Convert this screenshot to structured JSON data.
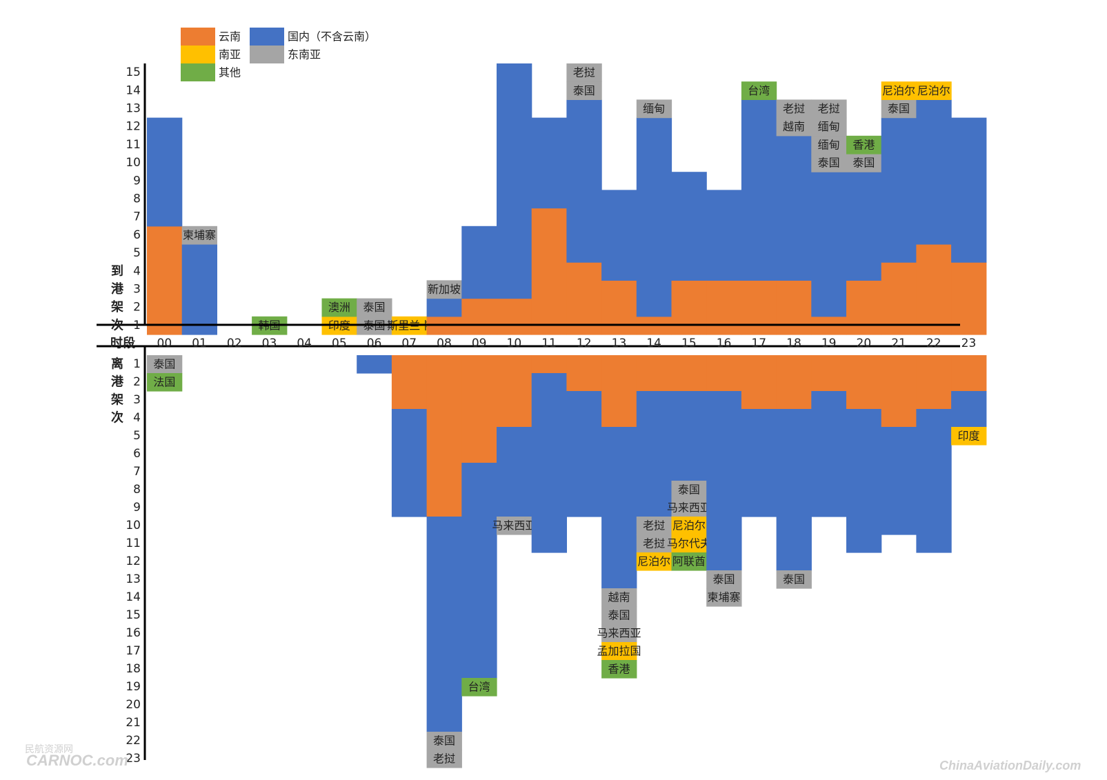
{
  "colors": {
    "yunnan": "#ED7D31",
    "domestic": "#4472C4",
    "south_asia": "#FFC000",
    "southeast_asia": "#A5A5A5",
    "other": "#70AD47"
  },
  "legend": [
    {
      "key": "yunnan",
      "label": "云南"
    },
    {
      "key": "domestic",
      "label": "国内（不含云南）"
    },
    {
      "key": "south_asia",
      "label": "南亚"
    },
    {
      "key": "southeast_asia",
      "label": "东南亚"
    },
    {
      "key": "other",
      "label": "其他"
    }
  ],
  "watermarks": {
    "left_line1": "民航资源网",
    "left_line2": "CARNOC.com",
    "right": "ChinaAviationDaily.com"
  },
  "chart_data": {
    "type": "bar",
    "x_axis_title": "时段",
    "arrivals_axis_title": "到港架次",
    "departures_axis_title": "离港架次",
    "categories": [
      "00",
      "01",
      "02",
      "03",
      "04",
      "05",
      "06",
      "07",
      "08",
      "09",
      "10",
      "11",
      "12",
      "13",
      "14",
      "15",
      "16",
      "17",
      "18",
      "19",
      "20",
      "21",
      "22",
      "23"
    ],
    "arrivals_ticks": [
      1,
      2,
      3,
      4,
      5,
      6,
      7,
      8,
      9,
      10,
      11,
      12,
      13,
      14,
      15
    ],
    "departures_ticks": [
      1,
      2,
      3,
      4,
      5,
      6,
      7,
      8,
      9,
      10,
      11,
      12,
      13,
      14,
      15,
      16,
      17,
      18,
      19,
      20,
      21,
      22,
      23
    ],
    "arrivals": [
      {
        "hour": "00",
        "stack": [
          {
            "c": "yunnan",
            "n": 6
          },
          {
            "c": "domestic",
            "n": 6
          }
        ]
      },
      {
        "hour": "01",
        "stack": [
          {
            "c": "domestic",
            "n": 5
          },
          {
            "c": "southeast_asia",
            "n": 1,
            "label": "柬埔寨"
          }
        ]
      },
      {
        "hour": "02",
        "stack": []
      },
      {
        "hour": "03",
        "stack": [
          {
            "c": "other",
            "n": 1,
            "label": "韩国"
          }
        ]
      },
      {
        "hour": "04",
        "stack": []
      },
      {
        "hour": "05",
        "stack": [
          {
            "c": "south_asia",
            "n": 1,
            "label": "印度"
          },
          {
            "c": "other",
            "n": 1,
            "label": "澳洲"
          }
        ]
      },
      {
        "hour": "06",
        "stack": [
          {
            "c": "southeast_asia",
            "n": 1,
            "label": "泰国"
          },
          {
            "c": "southeast_asia",
            "n": 1,
            "label": "泰国"
          }
        ]
      },
      {
        "hour": "07",
        "stack": [
          {
            "c": "south_asia",
            "n": 1,
            "label": "斯里兰卡"
          }
        ]
      },
      {
        "hour": "08",
        "stack": [
          {
            "c": "yunnan",
            "n": 1
          },
          {
            "c": "domestic",
            "n": 1
          },
          {
            "c": "southeast_asia",
            "n": 1,
            "label": "新加坡"
          }
        ]
      },
      {
        "hour": "09",
        "stack": [
          {
            "c": "yunnan",
            "n": 2
          },
          {
            "c": "domestic",
            "n": 4
          }
        ]
      },
      {
        "hour": "10",
        "stack": [
          {
            "c": "yunnan",
            "n": 2
          },
          {
            "c": "domestic",
            "n": 13
          }
        ]
      },
      {
        "hour": "11",
        "stack": [
          {
            "c": "yunnan",
            "n": 7
          },
          {
            "c": "domestic",
            "n": 5
          }
        ]
      },
      {
        "hour": "12",
        "stack": [
          {
            "c": "yunnan",
            "n": 4
          },
          {
            "c": "domestic",
            "n": 9
          },
          {
            "c": "southeast_asia",
            "n": 1,
            "label": "泰国"
          },
          {
            "c": "southeast_asia",
            "n": 1,
            "label": "老挝"
          }
        ]
      },
      {
        "hour": "13",
        "stack": [
          {
            "c": "yunnan",
            "n": 3
          },
          {
            "c": "domestic",
            "n": 5
          }
        ]
      },
      {
        "hour": "14",
        "stack": [
          {
            "c": "yunnan",
            "n": 1
          },
          {
            "c": "domestic",
            "n": 11
          },
          {
            "c": "southeast_asia",
            "n": 1,
            "label": "缅甸"
          }
        ]
      },
      {
        "hour": "15",
        "stack": [
          {
            "c": "yunnan",
            "n": 3
          },
          {
            "c": "domestic",
            "n": 6
          }
        ]
      },
      {
        "hour": "16",
        "stack": [
          {
            "c": "yunnan",
            "n": 3
          },
          {
            "c": "domestic",
            "n": 5
          }
        ]
      },
      {
        "hour": "17",
        "stack": [
          {
            "c": "yunnan",
            "n": 3
          },
          {
            "c": "domestic",
            "n": 10
          },
          {
            "c": "other",
            "n": 1,
            "label": "台湾"
          }
        ]
      },
      {
        "hour": "18",
        "stack": [
          {
            "c": "yunnan",
            "n": 3
          },
          {
            "c": "domestic",
            "n": 8
          },
          {
            "c": "southeast_asia",
            "n": 1,
            "label": "越南"
          },
          {
            "c": "southeast_asia",
            "n": 1,
            "label": "老挝"
          }
        ]
      },
      {
        "hour": "19",
        "stack": [
          {
            "c": "yunnan",
            "n": 1
          },
          {
            "c": "domestic",
            "n": 8
          },
          {
            "c": "southeast_asia",
            "n": 1,
            "label": "泰国"
          },
          {
            "c": "southeast_asia",
            "n": 1,
            "label": "缅甸"
          },
          {
            "c": "southeast_asia",
            "n": 1,
            "label": "缅甸"
          },
          {
            "c": "southeast_asia",
            "n": 1,
            "label": "老挝"
          }
        ]
      },
      {
        "hour": "20",
        "stack": [
          {
            "c": "yunnan",
            "n": 3
          },
          {
            "c": "domestic",
            "n": 6
          },
          {
            "c": "southeast_asia",
            "n": 1,
            "label": "泰国"
          },
          {
            "c": "other",
            "n": 1,
            "label": "香港"
          }
        ]
      },
      {
        "hour": "21",
        "stack": [
          {
            "c": "yunnan",
            "n": 4
          },
          {
            "c": "domestic",
            "n": 8
          },
          {
            "c": "southeast_asia",
            "n": 1,
            "label": "泰国"
          },
          {
            "c": "south_asia",
            "n": 1,
            "label": "尼泊尔"
          }
        ]
      },
      {
        "hour": "22",
        "stack": [
          {
            "c": "yunnan",
            "n": 5
          },
          {
            "c": "domestic",
            "n": 8
          },
          {
            "c": "south_asia",
            "n": 1,
            "label": "尼泊尔"
          }
        ]
      },
      {
        "hour": "23",
        "stack": [
          {
            "c": "yunnan",
            "n": 4
          },
          {
            "c": "domestic",
            "n": 8
          }
        ]
      }
    ],
    "departures": [
      {
        "hour": "00",
        "stack": [
          {
            "c": "southeast_asia",
            "n": 1,
            "label": "泰国"
          },
          {
            "c": "other",
            "n": 1,
            "label": "法国"
          }
        ]
      },
      {
        "hour": "01",
        "stack": []
      },
      {
        "hour": "02",
        "stack": []
      },
      {
        "hour": "03",
        "stack": []
      },
      {
        "hour": "04",
        "stack": []
      },
      {
        "hour": "05",
        "stack": []
      },
      {
        "hour": "06",
        "stack": [
          {
            "c": "domestic",
            "n": 1
          }
        ]
      },
      {
        "hour": "07",
        "stack": [
          {
            "c": "yunnan",
            "n": 3
          },
          {
            "c": "domestic",
            "n": 6
          }
        ]
      },
      {
        "hour": "08",
        "stack": [
          {
            "c": "yunnan",
            "n": 9
          },
          {
            "c": "domestic",
            "n": 12
          },
          {
            "c": "southeast_asia",
            "n": 1,
            "label": "泰国"
          },
          {
            "c": "southeast_asia",
            "n": 1,
            "label": "老挝"
          }
        ]
      },
      {
        "hour": "09",
        "stack": [
          {
            "c": "yunnan",
            "n": 6
          },
          {
            "c": "domestic",
            "n": 12
          },
          {
            "c": "other",
            "n": 1,
            "label": "台湾"
          }
        ]
      },
      {
        "hour": "10",
        "stack": [
          {
            "c": "yunnan",
            "n": 4
          },
          {
            "c": "domestic",
            "n": 5
          },
          {
            "c": "southeast_asia",
            "n": 1,
            "label": "马来西亚"
          }
        ]
      },
      {
        "hour": "11",
        "stack": [
          {
            "c": "yunnan",
            "n": 1
          },
          {
            "c": "domestic",
            "n": 10
          }
        ]
      },
      {
        "hour": "12",
        "stack": [
          {
            "c": "yunnan",
            "n": 2
          },
          {
            "c": "domestic",
            "n": 7
          }
        ]
      },
      {
        "hour": "13",
        "stack": [
          {
            "c": "yunnan",
            "n": 4
          },
          {
            "c": "domestic",
            "n": 9
          },
          {
            "c": "southeast_asia",
            "n": 1,
            "label": "越南"
          },
          {
            "c": "southeast_asia",
            "n": 1,
            "label": "泰国"
          },
          {
            "c": "southeast_asia",
            "n": 1,
            "label": "马来西亚"
          },
          {
            "c": "south_asia",
            "n": 1,
            "label": "孟加拉国"
          },
          {
            "c": "other",
            "n": 1,
            "label": "香港"
          }
        ]
      },
      {
        "hour": "14",
        "stack": [
          {
            "c": "yunnan",
            "n": 2
          },
          {
            "c": "domestic",
            "n": 7
          },
          {
            "c": "southeast_asia",
            "n": 1,
            "label": "老挝"
          },
          {
            "c": "southeast_asia",
            "n": 1,
            "label": "老挝"
          },
          {
            "c": "south_asia",
            "n": 1,
            "label": "尼泊尔"
          }
        ]
      },
      {
        "hour": "15",
        "stack": [
          {
            "c": "yunnan",
            "n": 2
          },
          {
            "c": "domestic",
            "n": 5
          },
          {
            "c": "southeast_asia",
            "n": 1,
            "label": "泰国"
          },
          {
            "c": "southeast_asia",
            "n": 1,
            "label": "马来西亚"
          },
          {
            "c": "south_asia",
            "n": 1,
            "label": "尼泊尔"
          },
          {
            "c": "south_asia",
            "n": 1,
            "label": "马尔代夫"
          },
          {
            "c": "other",
            "n": 1,
            "label": "阿联酋"
          }
        ]
      },
      {
        "hour": "16",
        "stack": [
          {
            "c": "yunnan",
            "n": 2
          },
          {
            "c": "domestic",
            "n": 10
          },
          {
            "c": "southeast_asia",
            "n": 1,
            "label": "泰国"
          },
          {
            "c": "southeast_asia",
            "n": 1,
            "label": "柬埔寨"
          }
        ]
      },
      {
        "hour": "17",
        "stack": [
          {
            "c": "yunnan",
            "n": 3
          },
          {
            "c": "domestic",
            "n": 6
          }
        ]
      },
      {
        "hour": "18",
        "stack": [
          {
            "c": "yunnan",
            "n": 3
          },
          {
            "c": "domestic",
            "n": 9
          },
          {
            "c": "southeast_asia",
            "n": 1,
            "label": "泰国"
          }
        ]
      },
      {
        "hour": "19",
        "stack": [
          {
            "c": "yunnan",
            "n": 2
          },
          {
            "c": "domestic",
            "n": 7
          }
        ]
      },
      {
        "hour": "20",
        "stack": [
          {
            "c": "yunnan",
            "n": 3
          },
          {
            "c": "domestic",
            "n": 8
          }
        ]
      },
      {
        "hour": "21",
        "stack": [
          {
            "c": "yunnan",
            "n": 4
          },
          {
            "c": "domestic",
            "n": 6
          }
        ]
      },
      {
        "hour": "22",
        "stack": [
          {
            "c": "yunnan",
            "n": 3
          },
          {
            "c": "domestic",
            "n": 8
          }
        ]
      },
      {
        "hour": "23",
        "stack": [
          {
            "c": "yunnan",
            "n": 2
          },
          {
            "c": "domestic",
            "n": 2
          },
          {
            "c": "south_asia",
            "n": 1,
            "label": "印度"
          }
        ]
      }
    ]
  }
}
